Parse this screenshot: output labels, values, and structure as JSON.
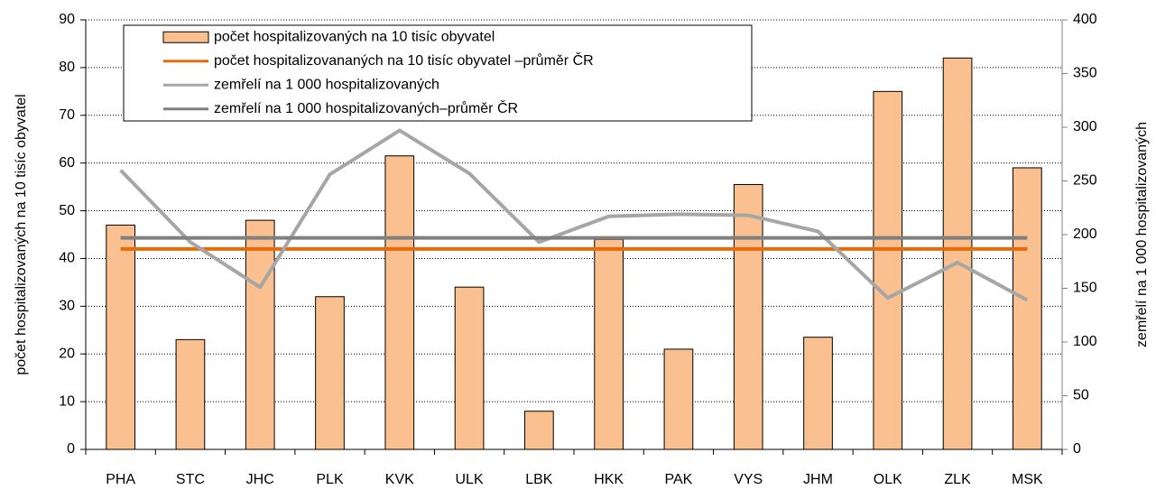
{
  "chart_data": {
    "type": "bar",
    "categories": [
      "PHA",
      "STC",
      "JHC",
      "PLK",
      "KVK",
      "ULK",
      "LBK",
      "HKK",
      "PAK",
      "VYS",
      "JHM",
      "OLK",
      "ZLK",
      "MSK"
    ],
    "series": [
      {
        "name": "počet hospitalizovaných na 10 tisíc obyvatel",
        "type": "bar",
        "color": "#fac090",
        "values": [
          47,
          23,
          48,
          32,
          61.5,
          34,
          8,
          44,
          21,
          55.5,
          23.5,
          75,
          82,
          59
        ]
      },
      {
        "name": "počet hospitalizovananých na 10 tisíc obyvatel –průměr ČR",
        "type": "hline",
        "color": "#e46c0a",
        "value": 42
      },
      {
        "name": "zemřelí na 1 000 hospitalizovaných",
        "type": "line",
        "axis": "y2",
        "color": "#a6a6a6",
        "values": [
          260,
          193,
          151,
          256,
          297,
          257,
          193,
          217,
          219,
          218,
          203,
          141,
          174,
          139
        ]
      },
      {
        "name": "zemřelí na 1 000 hospitalizovaných–průměr ČR",
        "type": "hline",
        "axis": "y2",
        "color": "#7f7f7f",
        "value": 197
      }
    ],
    "ylabel": "počet hospitalizovaných na 10 tisíc obyvatel",
    "y2label": "zemřelí na 1 000 hospitalizovaných",
    "ylim": [
      0,
      90
    ],
    "yticks": [
      0,
      10,
      20,
      30,
      40,
      50,
      60,
      70,
      80,
      90
    ],
    "y2lim": [
      0,
      400
    ],
    "y2ticks": [
      0,
      50,
      100,
      150,
      200,
      250,
      300,
      350,
      400
    ],
    "grid": true,
    "legend": "top-left"
  }
}
